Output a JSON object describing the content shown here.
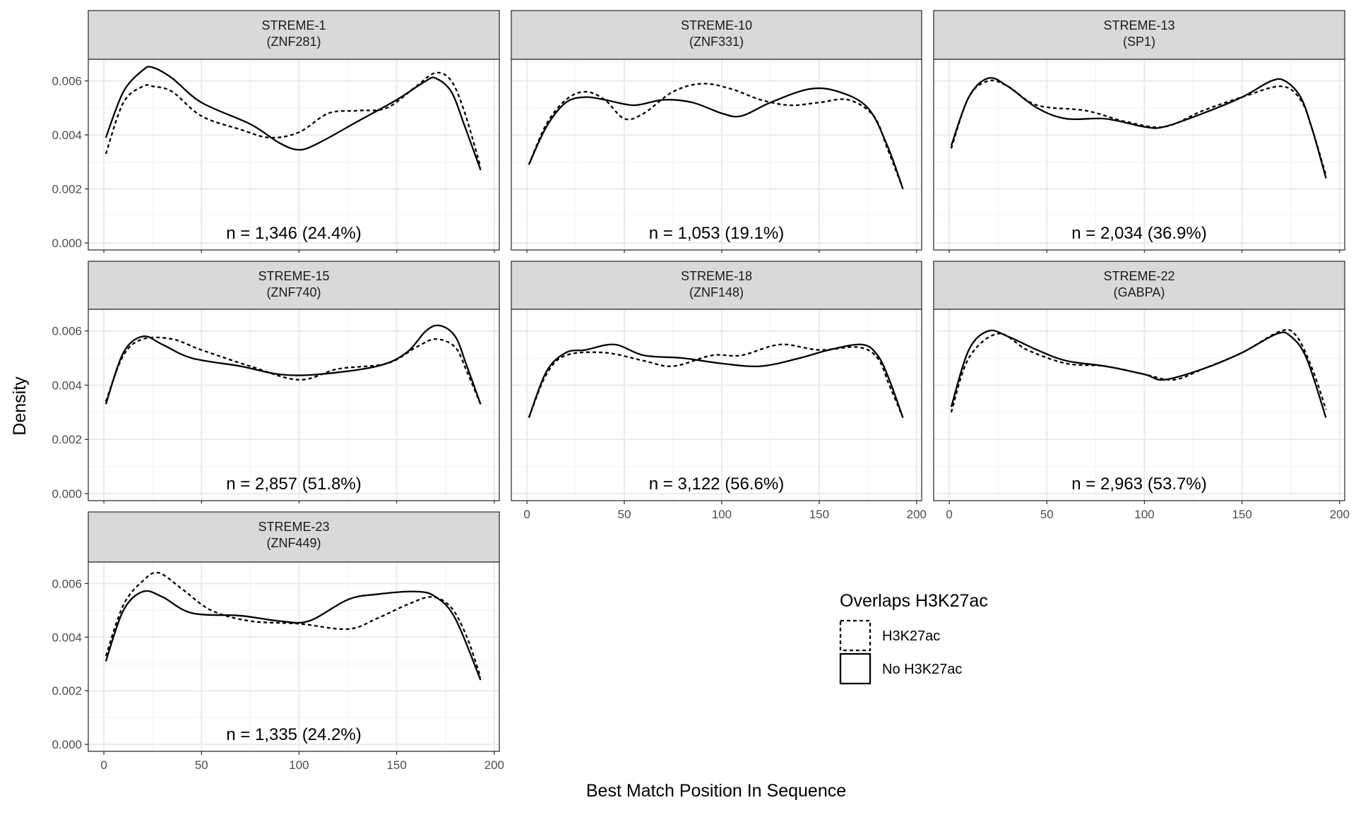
{
  "chart_data": {
    "type": "line",
    "xlabel": "Best Match Position In Sequence",
    "ylabel": "Density",
    "xlim": [
      -8,
      202.6
    ],
    "ylim": [
      -0.00026,
      0.0068
    ],
    "x_ticks": [
      "0",
      "50",
      "100",
      "150",
      "200"
    ],
    "y_ticks": [
      "0.000",
      "0.002",
      "0.004",
      "0.006"
    ],
    "grid": true,
    "legend": {
      "title": "Overlaps H3K27ac",
      "placement": "bottom-right",
      "entries": [
        {
          "label": "H3K27ac",
          "linetype": "dashed"
        },
        {
          "label": "No H3K27ac",
          "linetype": "solid"
        }
      ]
    },
    "colors": {
      "line": "#000000",
      "strip": "#d9d9d9",
      "grid": "#ebebeb",
      "border": "#333333"
    },
    "panels": [
      {
        "title": "STREME-1",
        "subtitle": "(ZNF281)",
        "annotation": "n = 1,346 (24.4%)",
        "series": [
          {
            "name": "No H3K27ac",
            "x": [
              1,
              10,
              20,
              25,
              35,
              50,
              75,
              90,
              100,
              110,
              130,
              150,
              165,
              170,
              178,
              185,
              193
            ],
            "y": [
              0.0039,
              0.0056,
              0.0064,
              0.0065,
              0.0061,
              0.0052,
              0.0044,
              0.0037,
              0.00345,
              0.0037,
              0.0045,
              0.0053,
              0.006,
              0.0061,
              0.0056,
              0.0043,
              0.0027
            ]
          },
          {
            "name": "H3K27ac",
            "x": [
              1,
              10,
              20,
              25,
              35,
              50,
              70,
              85,
              100,
              115,
              130,
              145,
              160,
              170,
              178,
              185,
              193
            ],
            "y": [
              0.0033,
              0.0052,
              0.0058,
              0.0058,
              0.0056,
              0.0047,
              0.0042,
              0.0039,
              0.0041,
              0.0048,
              0.0049,
              0.005,
              0.0058,
              0.0063,
              0.006,
              0.0048,
              0.0028
            ]
          }
        ]
      },
      {
        "title": "STREME-10",
        "subtitle": "(ZNF331)",
        "annotation": "n = 1,053 (19.1%)",
        "series": [
          {
            "name": "No H3K27ac",
            "x": [
              1,
              10,
              20,
              30,
              40,
              55,
              70,
              85,
              100,
              110,
              125,
              145,
              160,
              175,
              185,
              193
            ],
            "y": [
              0.0029,
              0.0043,
              0.0052,
              0.0054,
              0.0053,
              0.0051,
              0.0053,
              0.0052,
              0.0048,
              0.0047,
              0.0052,
              0.0057,
              0.0056,
              0.005,
              0.0036,
              0.002
            ]
          },
          {
            "name": "H3K27ac",
            "x": [
              1,
              10,
              20,
              30,
              40,
              50,
              60,
              75,
              90,
              105,
              120,
              135,
              150,
              165,
              178,
              185,
              193
            ],
            "y": [
              0.0029,
              0.0044,
              0.0053,
              0.0056,
              0.0053,
              0.0046,
              0.0048,
              0.0056,
              0.0059,
              0.0057,
              0.0053,
              0.0051,
              0.0052,
              0.0053,
              0.0047,
              0.0035,
              0.002
            ]
          }
        ]
      },
      {
        "title": "STREME-13",
        "subtitle": "(SP1)",
        "annotation": "n = 2,034 (36.9%)",
        "series": [
          {
            "name": "No H3K27ac",
            "x": [
              1,
              10,
              20,
              30,
              45,
              60,
              80,
              100,
              110,
              130,
              150,
              165,
              172,
              180,
              186,
              193
            ],
            "y": [
              0.0036,
              0.0054,
              0.0061,
              0.0058,
              0.005,
              0.0046,
              0.0046,
              0.0043,
              0.0043,
              0.0048,
              0.0054,
              0.006,
              0.006,
              0.0054,
              0.0042,
              0.0024
            ]
          },
          {
            "name": "H3K27ac",
            "x": [
              1,
              10,
              20,
              30,
              45,
              70,
              90,
              110,
              130,
              150,
              170,
              180,
              186,
              193
            ],
            "y": [
              0.0035,
              0.0054,
              0.006,
              0.0058,
              0.0051,
              0.0049,
              0.0045,
              0.0043,
              0.0049,
              0.0054,
              0.0058,
              0.0053,
              0.0042,
              0.0025
            ]
          }
        ]
      },
      {
        "title": "STREME-15",
        "subtitle": "(ZNF740)",
        "annotation": "n = 2,857 (51.8%)",
        "series": [
          {
            "name": "No H3K27ac",
            "x": [
              1,
              10,
              20,
              30,
              45,
              70,
              90,
              110,
              140,
              155,
              165,
              172,
              180,
              186,
              193
            ],
            "y": [
              0.0033,
              0.0052,
              0.0058,
              0.0055,
              0.005,
              0.0047,
              0.0044,
              0.0044,
              0.0047,
              0.0052,
              0.006,
              0.0062,
              0.0058,
              0.0047,
              0.0033
            ]
          },
          {
            "name": "H3K27ac",
            "x": [
              1,
              10,
              20,
              35,
              50,
              75,
              100,
              120,
              145,
              160,
              170,
              180,
              186,
              193
            ],
            "y": [
              0.0034,
              0.0051,
              0.0057,
              0.0057,
              0.0053,
              0.0047,
              0.0042,
              0.0046,
              0.0048,
              0.0054,
              0.0057,
              0.0054,
              0.0045,
              0.0033
            ]
          }
        ]
      },
      {
        "title": "STREME-18",
        "subtitle": "(ZNF148)",
        "annotation": "n = 3,122 (56.6%)",
        "series": [
          {
            "name": "No H3K27ac",
            "x": [
              1,
              10,
              20,
              30,
              45,
              60,
              80,
              100,
              120,
              140,
              155,
              172,
              180,
              186,
              193
            ],
            "y": [
              0.0028,
              0.0045,
              0.0052,
              0.0053,
              0.0055,
              0.0051,
              0.005,
              0.0048,
              0.0047,
              0.005,
              0.0053,
              0.0055,
              0.0051,
              0.0042,
              0.0028
            ]
          },
          {
            "name": "H3K27ac",
            "x": [
              1,
              10,
              20,
              40,
              60,
              75,
              95,
              110,
              130,
              150,
              170,
              180,
              186,
              193
            ],
            "y": [
              0.0028,
              0.0044,
              0.0051,
              0.0052,
              0.0049,
              0.0047,
              0.0051,
              0.0051,
              0.0055,
              0.0053,
              0.0054,
              0.005,
              0.004,
              0.0028
            ]
          }
        ]
      },
      {
        "title": "STREME-22",
        "subtitle": "(GABPA)",
        "annotation": "n = 2,963 (53.7%)",
        "series": [
          {
            "name": "No H3K27ac",
            "x": [
              1,
              10,
              20,
              30,
              45,
              60,
              80,
              100,
              110,
              130,
              150,
              168,
              175,
              183,
              193
            ],
            "y": [
              0.0032,
              0.0053,
              0.006,
              0.0058,
              0.0053,
              0.0049,
              0.0047,
              0.0044,
              0.0042,
              0.0046,
              0.0052,
              0.0059,
              0.0058,
              0.005,
              0.0028
            ]
          },
          {
            "name": "H3K27ac",
            "x": [
              1,
              10,
              25,
              40,
              60,
              80,
              100,
              115,
              130,
              150,
              170,
              178,
              186,
              193
            ],
            "y": [
              0.003,
              0.005,
              0.0059,
              0.0053,
              0.0048,
              0.0047,
              0.0044,
              0.0042,
              0.0046,
              0.0052,
              0.006,
              0.0058,
              0.0046,
              0.0031
            ]
          }
        ]
      },
      {
        "title": "STREME-23",
        "subtitle": "(ZNF449)",
        "annotation": "n = 1,335 (24.2%)",
        "series": [
          {
            "name": "No H3K27ac",
            "x": [
              1,
              10,
              20,
              30,
              45,
              70,
              90,
              105,
              125,
              140,
              160,
              170,
              180,
              193
            ],
            "y": [
              0.0031,
              0.005,
              0.0057,
              0.0055,
              0.0049,
              0.0048,
              0.0046,
              0.0046,
              0.0054,
              0.0056,
              0.0057,
              0.0055,
              0.0047,
              0.0024
            ]
          },
          {
            "name": "H3K27ac",
            "x": [
              1,
              10,
              20,
              28,
              40,
              55,
              75,
              100,
              125,
              140,
              155,
              168,
              178,
              186,
              193
            ],
            "y": [
              0.0033,
              0.0052,
              0.0061,
              0.0064,
              0.0058,
              0.005,
              0.0046,
              0.0045,
              0.0043,
              0.0047,
              0.0052,
              0.0055,
              0.0051,
              0.004,
              0.0025
            ]
          }
        ]
      }
    ]
  }
}
